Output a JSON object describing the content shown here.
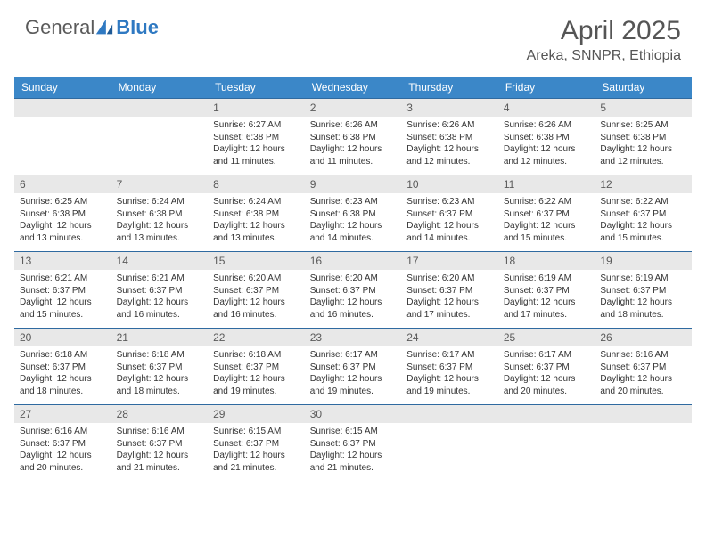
{
  "brand": {
    "part1": "General",
    "part2": "Blue"
  },
  "title": "April 2025",
  "location": "Areka, SNNPR, Ethiopia",
  "colors": {
    "header_bg": "#3b87c8",
    "header_text": "#ffffff",
    "daynum_bg": "#e8e8e8",
    "row_border": "#2f6aa0",
    "logo_gray": "#5a5a5a",
    "logo_blue": "#2f79c2"
  },
  "weekdays": [
    "Sunday",
    "Monday",
    "Tuesday",
    "Wednesday",
    "Thursday",
    "Friday",
    "Saturday"
  ],
  "weeks": [
    [
      null,
      null,
      {
        "n": "1",
        "sr": "6:27 AM",
        "ss": "6:38 PM",
        "dl": "12 hours and 11 minutes."
      },
      {
        "n": "2",
        "sr": "6:26 AM",
        "ss": "6:38 PM",
        "dl": "12 hours and 11 minutes."
      },
      {
        "n": "3",
        "sr": "6:26 AM",
        "ss": "6:38 PM",
        "dl": "12 hours and 12 minutes."
      },
      {
        "n": "4",
        "sr": "6:26 AM",
        "ss": "6:38 PM",
        "dl": "12 hours and 12 minutes."
      },
      {
        "n": "5",
        "sr": "6:25 AM",
        "ss": "6:38 PM",
        "dl": "12 hours and 12 minutes."
      }
    ],
    [
      {
        "n": "6",
        "sr": "6:25 AM",
        "ss": "6:38 PM",
        "dl": "12 hours and 13 minutes."
      },
      {
        "n": "7",
        "sr": "6:24 AM",
        "ss": "6:38 PM",
        "dl": "12 hours and 13 minutes."
      },
      {
        "n": "8",
        "sr": "6:24 AM",
        "ss": "6:38 PM",
        "dl": "12 hours and 13 minutes."
      },
      {
        "n": "9",
        "sr": "6:23 AM",
        "ss": "6:38 PM",
        "dl": "12 hours and 14 minutes."
      },
      {
        "n": "10",
        "sr": "6:23 AM",
        "ss": "6:37 PM",
        "dl": "12 hours and 14 minutes."
      },
      {
        "n": "11",
        "sr": "6:22 AM",
        "ss": "6:37 PM",
        "dl": "12 hours and 15 minutes."
      },
      {
        "n": "12",
        "sr": "6:22 AM",
        "ss": "6:37 PM",
        "dl": "12 hours and 15 minutes."
      }
    ],
    [
      {
        "n": "13",
        "sr": "6:21 AM",
        "ss": "6:37 PM",
        "dl": "12 hours and 15 minutes."
      },
      {
        "n": "14",
        "sr": "6:21 AM",
        "ss": "6:37 PM",
        "dl": "12 hours and 16 minutes."
      },
      {
        "n": "15",
        "sr": "6:20 AM",
        "ss": "6:37 PM",
        "dl": "12 hours and 16 minutes."
      },
      {
        "n": "16",
        "sr": "6:20 AM",
        "ss": "6:37 PM",
        "dl": "12 hours and 16 minutes."
      },
      {
        "n": "17",
        "sr": "6:20 AM",
        "ss": "6:37 PM",
        "dl": "12 hours and 17 minutes."
      },
      {
        "n": "18",
        "sr": "6:19 AM",
        "ss": "6:37 PM",
        "dl": "12 hours and 17 minutes."
      },
      {
        "n": "19",
        "sr": "6:19 AM",
        "ss": "6:37 PM",
        "dl": "12 hours and 18 minutes."
      }
    ],
    [
      {
        "n": "20",
        "sr": "6:18 AM",
        "ss": "6:37 PM",
        "dl": "12 hours and 18 minutes."
      },
      {
        "n": "21",
        "sr": "6:18 AM",
        "ss": "6:37 PM",
        "dl": "12 hours and 18 minutes."
      },
      {
        "n": "22",
        "sr": "6:18 AM",
        "ss": "6:37 PM",
        "dl": "12 hours and 19 minutes."
      },
      {
        "n": "23",
        "sr": "6:17 AM",
        "ss": "6:37 PM",
        "dl": "12 hours and 19 minutes."
      },
      {
        "n": "24",
        "sr": "6:17 AM",
        "ss": "6:37 PM",
        "dl": "12 hours and 19 minutes."
      },
      {
        "n": "25",
        "sr": "6:17 AM",
        "ss": "6:37 PM",
        "dl": "12 hours and 20 minutes."
      },
      {
        "n": "26",
        "sr": "6:16 AM",
        "ss": "6:37 PM",
        "dl": "12 hours and 20 minutes."
      }
    ],
    [
      {
        "n": "27",
        "sr": "6:16 AM",
        "ss": "6:37 PM",
        "dl": "12 hours and 20 minutes."
      },
      {
        "n": "28",
        "sr": "6:16 AM",
        "ss": "6:37 PM",
        "dl": "12 hours and 21 minutes."
      },
      {
        "n": "29",
        "sr": "6:15 AM",
        "ss": "6:37 PM",
        "dl": "12 hours and 21 minutes."
      },
      {
        "n": "30",
        "sr": "6:15 AM",
        "ss": "6:37 PM",
        "dl": "12 hours and 21 minutes."
      },
      null,
      null,
      null
    ]
  ],
  "labels": {
    "sunrise": "Sunrise:",
    "sunset": "Sunset:",
    "daylight": "Daylight:"
  }
}
